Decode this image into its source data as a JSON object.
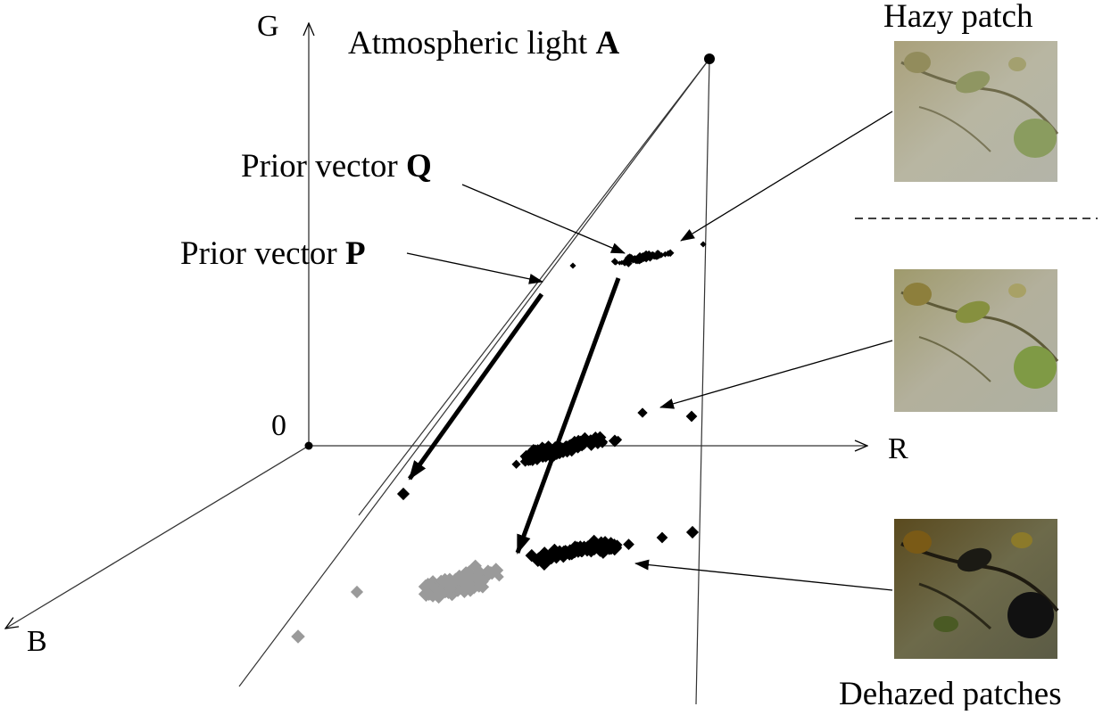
{
  "diagram": {
    "axes": {
      "g_label": "G",
      "r_label": "R",
      "b_label": "B",
      "origin_label": "0"
    },
    "labels": {
      "atmospheric_light_text": "Atmospheric light ",
      "atmospheric_light_symbol": "A",
      "prior_q_text": "Prior vector ",
      "prior_q_symbol": "Q",
      "prior_p_text": "Prior vector ",
      "prior_p_symbol": "P",
      "hazy_patch_title": "Hazy patch",
      "dehazed_patches_title": "Dehazed patches"
    },
    "colors": {
      "ink": "#000000",
      "ghost_cluster": "#9a9a9a",
      "axis": "#333333"
    }
  }
}
